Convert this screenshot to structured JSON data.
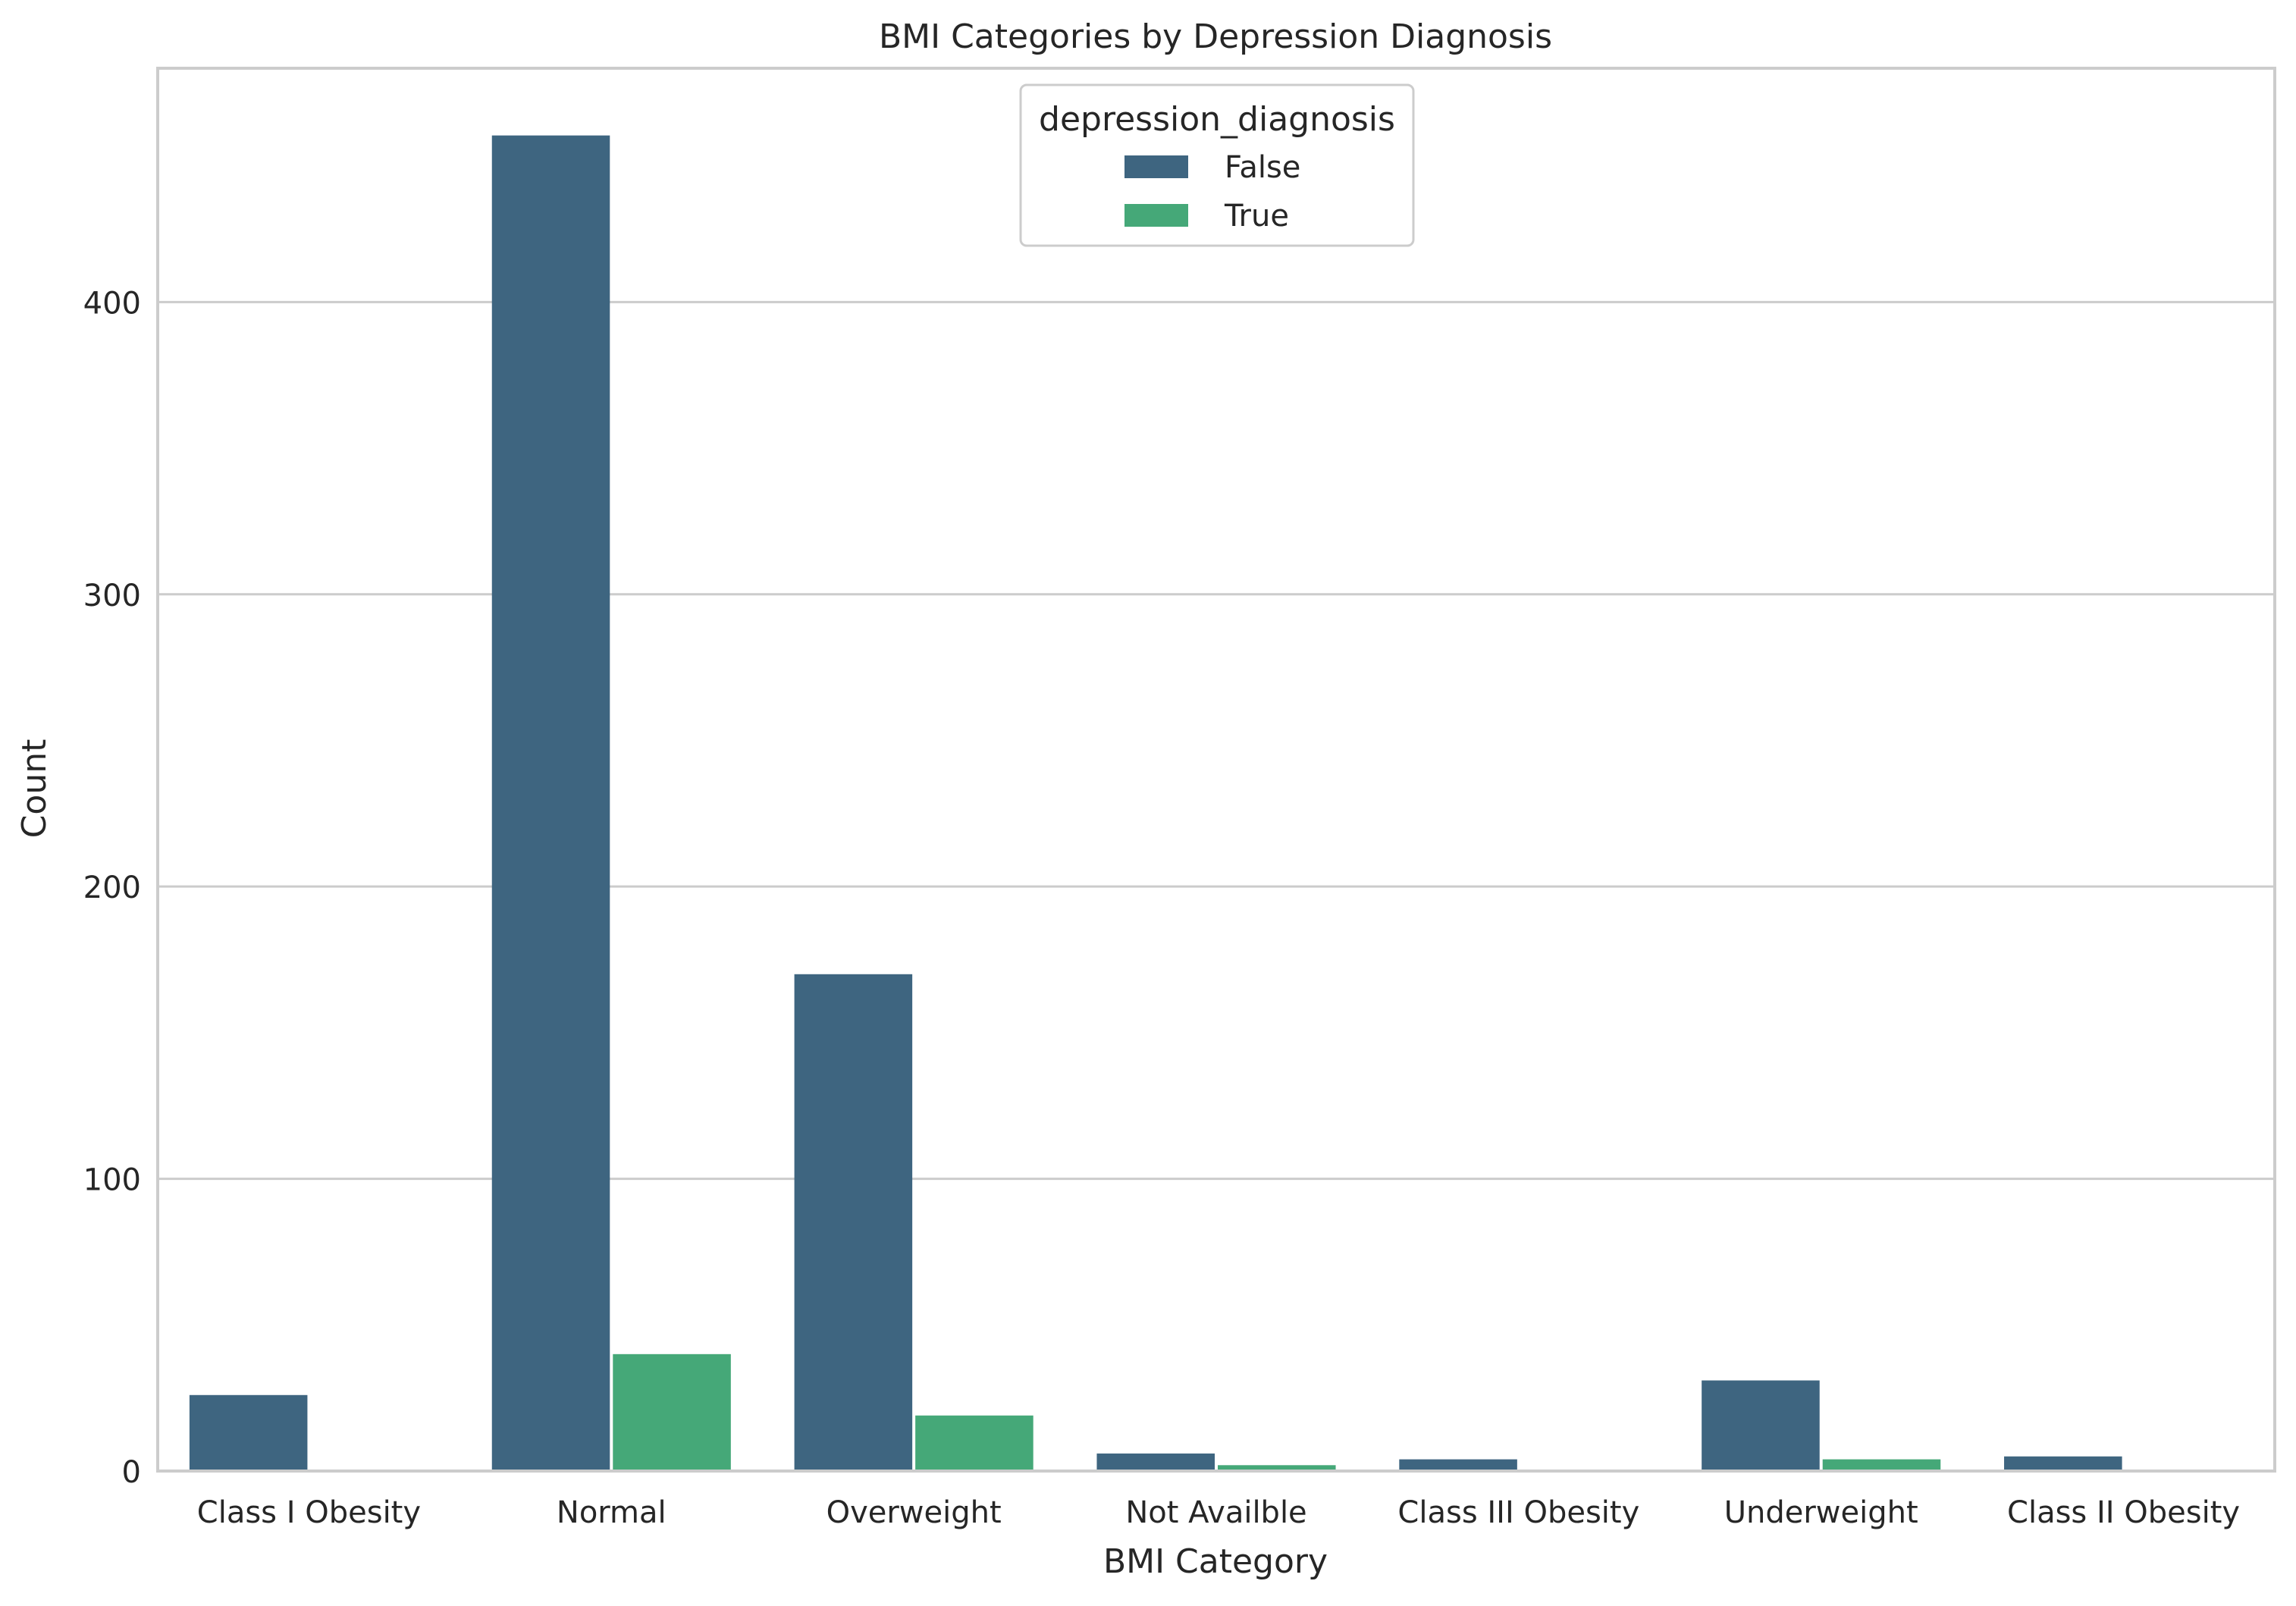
{
  "chart_data": {
    "type": "bar",
    "title": "BMI Categories by Depression Diagnosis",
    "xlabel": "BMI Category",
    "ylabel": "Count",
    "categories": [
      "Class I Obesity",
      "Normal",
      "Overweight",
      "Not Availble",
      "Class III Obesity",
      "Underweight",
      "Class II Obesity"
    ],
    "series": [
      {
        "name": "False",
        "color": "#3e6580",
        "values": [
          26,
          457,
          170,
          6,
          4,
          31,
          5
        ]
      },
      {
        "name": "True",
        "color": "#45a878",
        "values": [
          0,
          40,
          19,
          2,
          0,
          4,
          0
        ]
      }
    ],
    "ylim": [
      0,
      480
    ],
    "yticks": [
      0,
      100,
      200,
      300,
      400
    ],
    "grid": "horizontal",
    "legend": {
      "title": "depression_diagnosis",
      "placement": "top-center"
    }
  }
}
